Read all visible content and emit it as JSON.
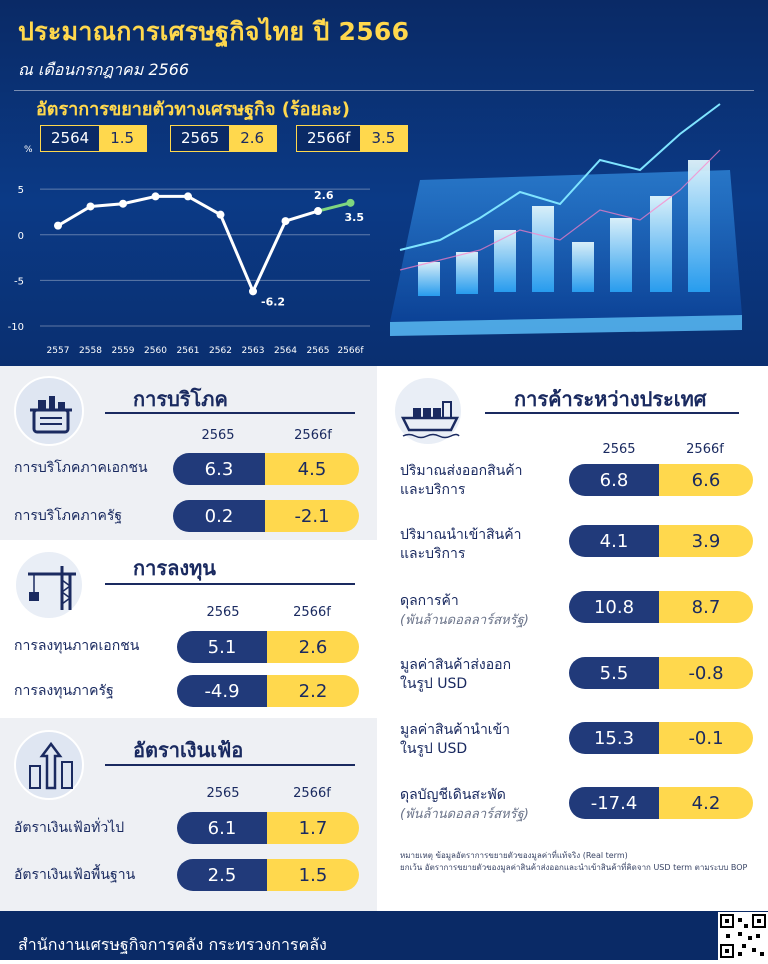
{
  "header": {
    "title": "ประมาณการเศรษฐกิจไทย ปี 2566",
    "subtitle": "ณ เดือนกรกฎาคม 2566",
    "growth_heading": "อัตราการขยายตัวทางเศรษฐกิจ (ร้อยละ)",
    "growth_boxes": [
      {
        "year": "2564",
        "value": "1.5"
      },
      {
        "year": "2565",
        "value": "2.6"
      },
      {
        "year": "2566f",
        "value": "3.5"
      }
    ]
  },
  "chart_data": {
    "type": "line",
    "x": [
      "2557",
      "2558",
      "2559",
      "2560",
      "2561",
      "2562",
      "2563",
      "2564",
      "2565",
      "2566f"
    ],
    "series": [
      {
        "values": [
          1.0,
          3.1,
          3.4,
          4.2,
          4.2,
          2.2,
          -6.2,
          1.5,
          2.6,
          3.5
        ]
      }
    ],
    "ylim": [
      -10,
      6
    ],
    "yticks": [
      "5",
      "0",
      "-5",
      "-10"
    ],
    "ylabel": "%",
    "data_labels": [
      {
        "index": 6,
        "text": "-6.2"
      },
      {
        "index": 8,
        "text": "2.6"
      },
      {
        "index": 9,
        "text": "3.5"
      }
    ],
    "colors": {
      "actual": "#ffffff",
      "forecast": "#7fd67f"
    }
  },
  "consumption": {
    "title": "การบริโภค",
    "col1": "2565",
    "col2": "2566f",
    "rows": [
      {
        "label": "การบริโภคภาคเอกชน",
        "v1": "6.3",
        "v2": "4.5"
      },
      {
        "label": "การบริโภคภาครัฐ",
        "v1": "0.2",
        "v2": "-2.1"
      }
    ]
  },
  "investment": {
    "title": "การลงทุน",
    "col1": "2565",
    "col2": "2566f",
    "rows": [
      {
        "label": "การลงทุนภาคเอกชน",
        "v1": "5.1",
        "v2": "2.6"
      },
      {
        "label": "การลงทุนภาครัฐ",
        "v1": "-4.9",
        "v2": "2.2"
      }
    ]
  },
  "inflation": {
    "title": "อัตราเงินเฟ้อ",
    "col1": "2565",
    "col2": "2566f",
    "rows": [
      {
        "label": "อัตราเงินเฟ้อทั่วไป",
        "v1": "6.1",
        "v2": "1.7"
      },
      {
        "label": "อัตราเงินเฟ้อพื้นฐาน",
        "v1": "2.5",
        "v2": "1.5"
      }
    ]
  },
  "trade": {
    "title": "การค้าระหว่างประเทศ",
    "col1": "2565",
    "col2": "2566f",
    "rows": [
      {
        "label1": "ปริมาณส่งออกสินค้า",
        "label2": "และบริการ",
        "v1": "6.8",
        "v2": "6.6"
      },
      {
        "label1": "ปริมาณนำเข้าสินค้า",
        "label2": "และบริการ",
        "v1": "4.1",
        "v2": "3.9"
      },
      {
        "label1": "ดุลการค้า",
        "sub": "(พันล้านดอลลาร์สหรัฐ)",
        "v1": "10.8",
        "v2": "8.7"
      },
      {
        "label1": "มูลค่าสินค้าส่งออก",
        "label2": "ในรูป USD",
        "v1": "5.5",
        "v2": "-0.8"
      },
      {
        "label1": "มูลค่าสินค้านำเข้า",
        "label2": "ในรูป USD",
        "v1": "15.3",
        "v2": "-0.1"
      },
      {
        "label1": "ดุลบัญชีเดินสะพัด",
        "sub": "(พันล้านดอลลาร์สหรัฐ)",
        "v1": "-17.4",
        "v2": "4.2"
      }
    ]
  },
  "notes": {
    "note1": "หมายเหตุ ข้อมูลอัตราการขยายตัวของมูลค่าที่แท้จริง (Real term)",
    "note2": "ยกเว้น อัตราการขยายตัวของมูลค่าสินค้าส่งออกและนำเข้าสินค้าที่คิดจาก USD term ตามระบบ BOP"
  },
  "footer": {
    "text": "สำนักงานเศรษฐกิจการคลัง กระทรวงการคลัง"
  },
  "colors": {
    "navy": "#213a7a",
    "yellow": "#ffd84d",
    "dark_blue": "#0a2a66"
  }
}
